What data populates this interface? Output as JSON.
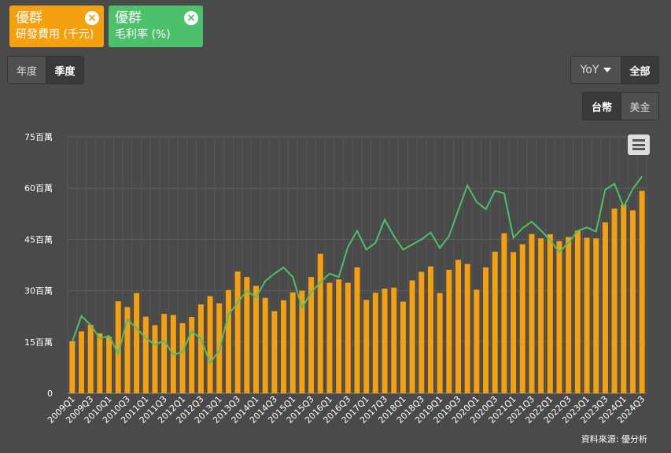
{
  "chips": [
    {
      "company": "優群",
      "metric": "研發費用 (千元)",
      "color": "#f5a00f",
      "close_icon": "close-circle-icon"
    },
    {
      "company": "優群",
      "metric": "毛利率 (%)",
      "color": "#4cc06a",
      "close_icon": "close-circle-icon"
    }
  ],
  "period_toggle": {
    "annual": "年度",
    "quarterly": "季度",
    "selected": "quarterly"
  },
  "yoy_dropdown": {
    "label": "YoY",
    "icon": "caret-down-icon"
  },
  "all_button": "全部",
  "currency_toggle": {
    "twd": "台幣",
    "usd": "美金",
    "selected": "twd"
  },
  "menu_icon": "hamburger-menu-icon",
  "source": "資料來源: 優分析",
  "chart_data": {
    "type": "bar+line",
    "x": [
      "2009Q1",
      "2009Q2",
      "2009Q3",
      "2009Q4",
      "2010Q1",
      "2010Q2",
      "2010Q3",
      "2010Q4",
      "2011Q1",
      "2011Q2",
      "2011Q3",
      "2011Q4",
      "2012Q1",
      "2012Q2",
      "2012Q3",
      "2012Q4",
      "2013Q1",
      "2013Q2",
      "2013Q3",
      "2013Q4",
      "2014Q1",
      "2014Q2",
      "2014Q3",
      "2014Q4",
      "2015Q1",
      "2015Q2",
      "2015Q3",
      "2015Q4",
      "2016Q1",
      "2016Q2",
      "2016Q3",
      "2016Q4",
      "2017Q1",
      "2017Q2",
      "2017Q3",
      "2017Q4",
      "2018Q1",
      "2018Q2",
      "2018Q3",
      "2018Q4",
      "2019Q1",
      "2019Q2",
      "2019Q3",
      "2019Q4",
      "2020Q1",
      "2020Q2",
      "2020Q3",
      "2020Q4",
      "2021Q1",
      "2021Q2",
      "2021Q3",
      "2021Q4",
      "2022Q1",
      "2022Q2",
      "2022Q3",
      "2022Q4",
      "2023Q1",
      "2023Q2",
      "2023Q3",
      "2023Q4",
      "2024Q1",
      "2024Q2",
      "2024Q3"
    ],
    "tick_labels": [
      "2009Q1",
      "2009Q3",
      "2010Q1",
      "2010Q3",
      "2011Q1",
      "2011Q3",
      "2012Q1",
      "2012Q3",
      "2013Q1",
      "2013Q3",
      "2014Q1",
      "2014Q3",
      "2015Q1",
      "2015Q3",
      "2016Q1",
      "2016Q3",
      "2017Q1",
      "2017Q3",
      "2018Q1",
      "2018Q3",
      "2019Q1",
      "2019Q3",
      "2020Q1",
      "2020Q3",
      "2021Q1",
      "2021Q3",
      "2022Q1",
      "2022Q3",
      "2023Q1",
      "2023Q3",
      "2024Q1",
      "2024Q3"
    ],
    "y_ticks": [
      0,
      15,
      30,
      45,
      60,
      75
    ],
    "y_tick_labels": [
      "0",
      "15百萬",
      "30百萬",
      "45百萬",
      "60百萬",
      "75百萬"
    ],
    "ylim": [
      0,
      75
    ],
    "grid": true,
    "series": [
      {
        "name": "研發費用 (千元)",
        "kind": "bar",
        "color": "#f5a00f",
        "values": [
          15.2,
          18.1,
          20.0,
          17.5,
          16.5,
          26.9,
          25.2,
          29.3,
          22.4,
          19.9,
          23.2,
          22.9,
          20.5,
          22.3,
          26.0,
          28.4,
          26.3,
          30.2,
          35.6,
          34.0,
          31.4,
          27.9,
          24.0,
          27.2,
          29.5,
          30.0,
          34.0,
          40.8,
          32.3,
          33.3,
          32.3,
          36.8,
          27.3,
          29.4,
          30.6,
          30.9,
          26.8,
          33.0,
          35.5,
          37.1,
          29.3,
          36.1,
          39.0,
          37.8,
          30.3,
          36.8,
          41.4,
          46.8,
          41.3,
          43.6,
          46.6,
          45.3,
          46.5,
          44.5,
          45.7,
          47.6,
          45.5,
          45.3,
          50.0,
          54.0,
          55.2,
          53.5,
          59.2
        ]
      },
      {
        "name": "毛利率 (%)",
        "kind": "line",
        "color": "#4cc06a",
        "values": [
          15.0,
          22.6,
          20.0,
          16.0,
          16.8,
          11.6,
          21.6,
          19.0,
          16.2,
          14.2,
          15.4,
          11.3,
          12.0,
          18.2,
          15.9,
          8.9,
          12.5,
          23.0,
          26.5,
          30.0,
          28.0,
          32.8,
          35.0,
          36.8,
          34.0,
          25.0,
          29.5,
          32.5,
          35.0,
          34.0,
          42.8,
          47.5,
          42.0,
          44.0,
          50.8,
          46.0,
          42.0,
          43.5,
          45.0,
          47.0,
          42.5,
          46.0,
          53.5,
          60.8,
          56.0,
          53.8,
          59.2,
          58.5,
          45.5,
          48.3,
          50.2,
          47.6,
          44.8,
          41.3,
          44.0,
          47.5,
          48.5,
          47.3,
          59.5,
          61.3,
          54.5,
          59.8,
          63.4
        ]
      }
    ]
  }
}
